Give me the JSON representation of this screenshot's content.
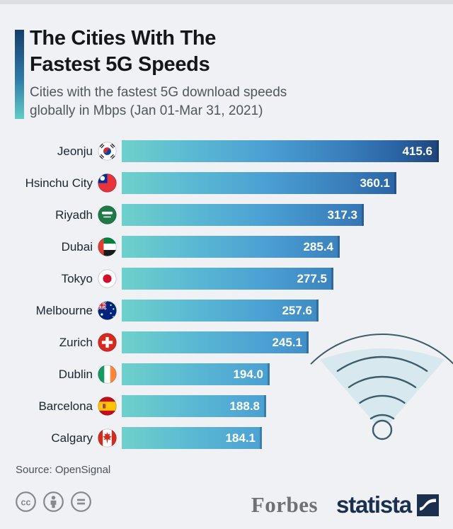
{
  "header": {
    "title_line1": "The Cities With The",
    "title_line2": "Fastest 5G Speeds",
    "subtitle_line1": "Cities with the fastest 5G download speeds",
    "subtitle_line2": "globally in Mbps (Jan 01-Mar 31, 2021)"
  },
  "chart_data": {
    "type": "bar",
    "orientation": "horizontal",
    "title": "The Cities With The Fastest 5G Speeds",
    "unit": "Mbps",
    "xlim": [
      0,
      415.6
    ],
    "grid": false,
    "legend": false,
    "value_labels_position": "inside-end",
    "categories": [
      "Jeonju",
      "Hsinchu City",
      "Riyadh",
      "Dubai",
      "Tokyo",
      "Melbourne",
      "Zurich",
      "Dublin",
      "Barcelona",
      "Calgary"
    ],
    "countries": [
      "South Korea",
      "Taiwan",
      "Saudi Arabia",
      "United Arab Emirates",
      "Japan",
      "Australia",
      "Switzerland",
      "Ireland",
      "Spain",
      "Canada"
    ],
    "flags": [
      "south-korea",
      "taiwan",
      "saudi-arabia",
      "uae",
      "japan",
      "australia",
      "switzerland",
      "ireland",
      "spain",
      "canada"
    ],
    "values": [
      415.6,
      360.1,
      317.3,
      285.4,
      277.5,
      257.6,
      245.1,
      194.0,
      188.8,
      184.1
    ],
    "value_labels": [
      "415.6",
      "360.1",
      "317.3",
      "285.4",
      "277.5",
      "257.6",
      "245.1",
      "194.0",
      "188.8",
      "184.1"
    ],
    "bar_gradient": [
      "#6FD1CB",
      "#4BA0D3",
      "#1E4478"
    ]
  },
  "decoration": {
    "wifi_icon": "wifi-signal-icon",
    "wifi_wedge_color": "#CFE5EC",
    "wifi_stroke_color": "#3D5C6A"
  },
  "footer": {
    "source": "Source: OpenSignal",
    "license_icons": [
      "cc-icon",
      "attribution-icon",
      "no-derivatives-icon"
    ],
    "forbes": "Forbes",
    "statista": "statista"
  },
  "colors": {
    "background": "#EFF1F4",
    "title_text": "#14171A",
    "subtitle_text": "#50565D",
    "label_text": "#1B2531",
    "value_text": "#FFFFFF",
    "statista_navy": "#1B2F4E",
    "forbes_gray": "#6F7173"
  }
}
